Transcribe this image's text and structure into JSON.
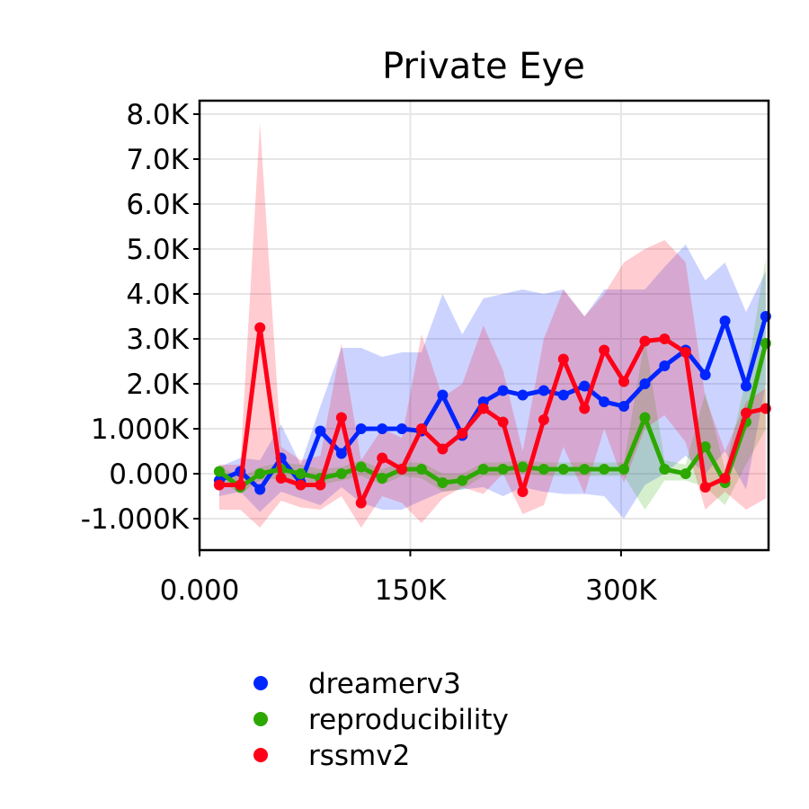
{
  "chart_data": {
    "type": "line",
    "title": "Private Eye",
    "xlabel": "",
    "ylabel": "",
    "xlim": [
      0,
      405000
    ],
    "ylim": [
      -1700,
      8300
    ],
    "x_ticks": [
      {
        "value": 0,
        "label": "0.000"
      },
      {
        "value": 150000,
        "label": "150K"
      },
      {
        "value": 300000,
        "label": "300K"
      }
    ],
    "y_ticks": [
      {
        "value": -1000,
        "label": "-1.000K"
      },
      {
        "value": 0,
        "label": "0.000"
      },
      {
        "value": 1000,
        "label": "1.000K"
      },
      {
        "value": 2000,
        "label": "2.0K"
      },
      {
        "value": 3000,
        "label": "3.0K"
      },
      {
        "value": 4000,
        "label": "4.0K"
      },
      {
        "value": 5000,
        "label": "5.0K"
      },
      {
        "value": 6000,
        "label": "6.0K"
      },
      {
        "value": 7000,
        "label": "7.0K"
      },
      {
        "value": 8000,
        "label": "8.0K"
      }
    ],
    "grid": true,
    "legend_position": "bottom",
    "x": [
      14000,
      29000,
      43000,
      58000,
      72000,
      86000,
      101000,
      115000,
      130000,
      144000,
      158000,
      173000,
      187000,
      202000,
      216000,
      230000,
      245000,
      259000,
      274000,
      288000,
      302000,
      317000,
      331000,
      346000,
      360000,
      374000,
      389000,
      403000
    ],
    "series": [
      {
        "name": "dreamerv3",
        "color": "#0025ff",
        "values": [
          -150,
          50,
          -350,
          350,
          -200,
          950,
          450,
          1000,
          1000,
          1000,
          950,
          1750,
          850,
          1600,
          1850,
          1750,
          1850,
          1750,
          1950,
          1600,
          1500,
          2000,
          2400,
          2750,
          2200,
          3400,
          1950,
          3500
        ],
        "upper": [
          150,
          350,
          300,
          1100,
          200,
          1500,
          2800,
          2800,
          2600,
          2700,
          2700,
          4000,
          3100,
          3900,
          4000,
          4100,
          4000,
          4100,
          3500,
          4100,
          4100,
          4100,
          4600,
          5100,
          4300,
          4700,
          3600,
          4500
        ],
        "lower": [
          -500,
          -400,
          -850,
          -400,
          -550,
          -700,
          -300,
          -650,
          -800,
          -800,
          -600,
          -400,
          -350,
          -300,
          -500,
          -300,
          -400,
          -450,
          -450,
          -500,
          -1000,
          -250,
          0,
          400,
          0,
          500,
          -350,
          2000
        ]
      },
      {
        "name": "reproducibility",
        "color": "#2ca800",
        "values": [
          50,
          -300,
          0,
          100,
          0,
          -100,
          0,
          150,
          -100,
          100,
          100,
          -200,
          -150,
          100,
          100,
          150,
          100,
          100,
          100,
          100,
          100,
          1250,
          100,
          0,
          600,
          -200,
          1150,
          2900
        ],
        "upper": [
          200,
          -100,
          150,
          250,
          200,
          100,
          150,
          300,
          100,
          250,
          250,
          0,
          0,
          250,
          250,
          300,
          250,
          250,
          250,
          250,
          250,
          3000,
          300,
          200,
          1800,
          100,
          2100,
          4800
        ],
        "lower": [
          -150,
          -450,
          -150,
          -100,
          -150,
          -250,
          -150,
          -50,
          -250,
          -50,
          -100,
          -400,
          -350,
          -50,
          -50,
          0,
          -50,
          -50,
          -50,
          -50,
          -50,
          -800,
          -150,
          -150,
          -300,
          -700,
          200,
          1000
        ]
      },
      {
        "name": "rssmv2",
        "color": "#ff0018",
        "values": [
          -250,
          -250,
          3250,
          -100,
          -250,
          -250,
          1250,
          -650,
          350,
          100,
          1000,
          550,
          900,
          1450,
          1150,
          -400,
          1200,
          2550,
          1450,
          2750,
          2050,
          2950,
          3000,
          2700,
          -300,
          -100,
          1350,
          1450
        ],
        "upper": [
          200,
          200,
          7800,
          600,
          300,
          400,
          2900,
          300,
          1000,
          800,
          3100,
          1700,
          2000,
          3300,
          2300,
          500,
          3000,
          4100,
          3500,
          4000,
          4700,
          5000,
          5200,
          4700,
          1700,
          500,
          1600,
          1900
        ],
        "lower": [
          -800,
          -800,
          -1200,
          -600,
          -750,
          -800,
          -500,
          -1200,
          -500,
          -650,
          -1100,
          -550,
          -300,
          -450,
          0,
          -900,
          -700,
          600,
          -450,
          1000,
          -200,
          1000,
          1300,
          700,
          -800,
          -400,
          -800,
          -550
        ]
      }
    ]
  }
}
